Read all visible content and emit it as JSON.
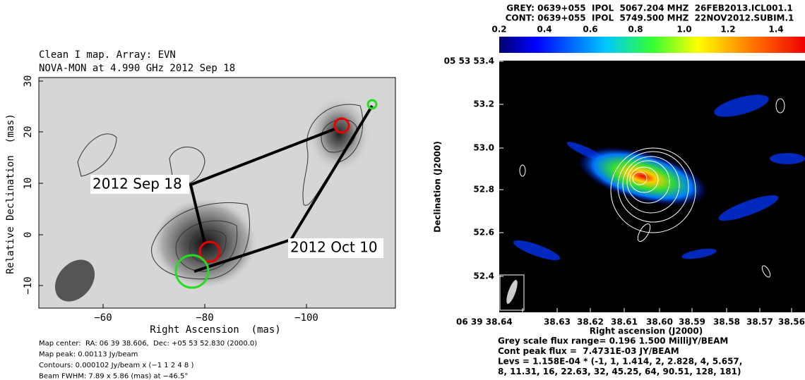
{
  "left": {
    "title": [
      "Clean I map. Array: EVN",
      "NOVA-MON at 4.990 GHz 2012 Sep 18"
    ],
    "y_ticks": [
      "30",
      "20",
      "10",
      "0",
      "−10"
    ],
    "x_ticks": [
      "−60",
      "−80",
      "−100"
    ],
    "x_label": "Right Ascension  (mas)",
    "y_label": "Relative Declination  (mas)",
    "annotations": [
      "2012 Sep 18",
      "2012 Oct 10"
    ],
    "footer": [
      "Map center:  RA: 06 39 38.606,  Dec: +05 53 52.830 (2000.0)",
      "Map peak: 0.00113 Jy/beam",
      "Contours: 0.000102 Jy/beam x (−1 1 2 4 8 )",
      "Beam FWHM: 7.89 x 5.86 (mas) at −46.5°"
    ]
  },
  "right": {
    "header": [
      "GREY: 0639+055  IPOL  5067.204 MHZ  26FEB2013.ICL001.1",
      "CONT: 0639+055  IPOL  5749.500 MHZ  22NOV2012.SUBIM.1"
    ],
    "colorbar_ticks": [
      "0.2",
      "0.4",
      "0.6",
      "0.8",
      "1.0",
      "1.2",
      "1.4"
    ],
    "y_ticks": [
      "05 53 53.4",
      "53.2",
      "53.0",
      "52.8",
      "52.6",
      "52.4"
    ],
    "x_ticks": [
      "06 39 38.64",
      "38.63",
      "38.62",
      "38.61",
      "38.60",
      "38.59",
      "38.58",
      "38.57",
      "38.56"
    ],
    "x_label": "Right ascension (J2000)",
    "y_label": "Declination (J2000)",
    "footer": [
      "Grey scale flux range= 0.196 1.500 MilliJY/BEAM",
      "Cont peak flux =  7.4731E-03 JY/BEAM",
      "Levs = 1.158E-04 * (-1, 1, 1.414, 2, 2.828, 4, 5.657,",
      "8, 11.31, 16, 22.63, 32, 45.25, 64, 90.51, 128, 181)"
    ]
  }
}
